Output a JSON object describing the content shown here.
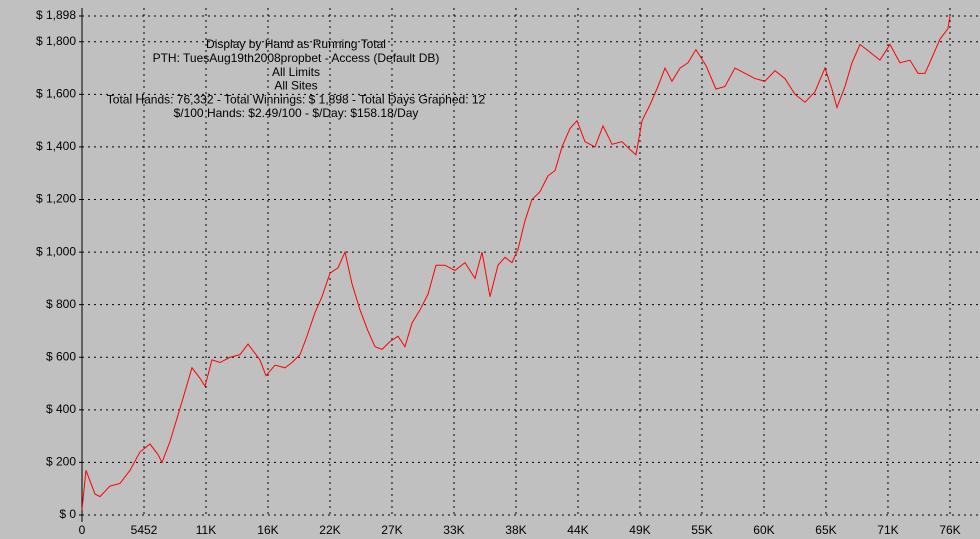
{
  "chart_data": {
    "type": "line",
    "annotations": [
      "Display by Hand as Running Total",
      "PTH: TuesAug19th2008propbet - Access (Default DB)",
      "All Limits",
      "All Sites",
      "Total Hands: 76,332 - Total Winnings: $ 1,898 - Total Days Graphed: 12",
      "$/100 Hands: $2.49/100 - $/Day: $158.18/Day"
    ],
    "x": [
      0,
      350,
      1140,
      1580,
      2460,
      3340,
      4220,
      5100,
      5980,
      6680,
      7040,
      7740,
      8440,
      9060,
      9670,
      10380,
      10820,
      11430,
      12140,
      13020,
      13890,
      14600,
      15650,
      16180,
      16970,
      17850,
      18470,
      19170,
      19700,
      20490,
      21100,
      21810,
      22510,
      23130,
      23740,
      24450,
      25150,
      25770,
      26380,
      27090,
      27790,
      28400,
      29020,
      29720,
      30430,
      31130,
      31920,
      32800,
      33680,
      34560,
      35180,
      35880,
      36580,
      37200,
      37810,
      38340,
      38960,
      39570,
      40280,
      40980,
      41600,
      42210,
      42910,
      43530,
      44230,
      45110,
      45820,
      46610,
      47490,
      48190,
      48720,
      49250,
      49950,
      50650,
      51270,
      51880,
      52590,
      53290,
      53990,
      54870,
      55750,
      56540,
      57420,
      58300,
      59180,
      60060,
      60940,
      61820,
      62700,
      63580,
      64460,
      65340,
      65950,
      66390,
      67100,
      67710,
      68420,
      69300,
      70170,
      71050,
      71930,
      72810,
      73520,
      74130,
      74750,
      75450,
      76150,
      76332
    ],
    "series": [
      {
        "color": "#ff0000",
        "values": [
          20,
          170,
          80,
          70,
          110,
          120,
          170,
          240,
          270,
          230,
          200,
          280,
          380,
          470,
          560,
          520,
          490,
          590,
          580,
          600,
          610,
          650,
          590,
          530,
          570,
          560,
          580,
          610,
          670,
          770,
          830,
          920,
          940,
          1000,
          880,
          780,
          700,
          640,
          630,
          660,
          680,
          640,
          730,
          780,
          840,
          950,
          950,
          930,
          960,
          900,
          1000,
          830,
          950,
          980,
          960,
          1010,
          1120,
          1200,
          1230,
          1290,
          1310,
          1400,
          1470,
          1500,
          1420,
          1400,
          1480,
          1410,
          1420,
          1390,
          1370,
          1500,
          1560,
          1630,
          1700,
          1650,
          1700,
          1720,
          1770,
          1710,
          1620,
          1630,
          1700,
          1680,
          1660,
          1650,
          1690,
          1660,
          1600,
          1570,
          1610,
          1700,
          1620,
          1550,
          1630,
          1720,
          1790,
          1760,
          1730,
          1790,
          1720,
          1730,
          1680,
          1680,
          1740,
          1810,
          1850,
          1898
        ]
      }
    ],
    "xlim": [
      0,
      76332
    ],
    "ylim": [
      0,
      1898
    ],
    "xticks": [
      0,
      5452,
      {
        "value": 10904,
        "label": "11K"
      },
      {
        "value": 16356,
        "label": "16K"
      },
      {
        "value": 21808,
        "label": "22K"
      },
      {
        "value": 27260,
        "label": "27K"
      },
      {
        "value": 32712,
        "label": "33K"
      },
      {
        "value": 38164,
        "label": "38K"
      },
      {
        "value": 43616,
        "label": "44K"
      },
      {
        "value": 49068,
        "label": "49K"
      },
      {
        "value": 54520,
        "label": "55K"
      },
      {
        "value": 59972,
        "label": "60K"
      },
      {
        "value": 65424,
        "label": "65K"
      },
      {
        "value": 70876,
        "label": "71K"
      },
      {
        "value": 76332,
        "label": "76K"
      }
    ],
    "yticks": [
      {
        "value": 0,
        "label": "$ 0"
      },
      {
        "value": 200,
        "label": "$ 200"
      },
      {
        "value": 400,
        "label": "$ 400"
      },
      {
        "value": 600,
        "label": "$ 600"
      },
      {
        "value": 800,
        "label": "$ 800"
      },
      {
        "value": 1000,
        "label": "$ 1,000"
      },
      {
        "value": 1200,
        "label": "$ 1,200"
      },
      {
        "value": 1400,
        "label": "$ 1,400"
      },
      {
        "value": 1600,
        "label": "$ 1,600"
      },
      {
        "value": 1800,
        "label": "$ 1,800"
      },
      {
        "value": 1898,
        "label": "$ 1,898"
      }
    ],
    "grid": true
  }
}
